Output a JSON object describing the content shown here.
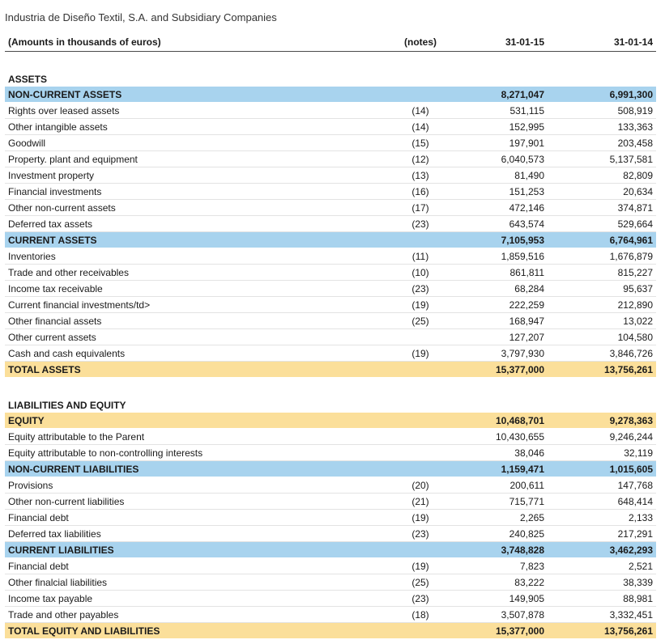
{
  "company": "Industria de Diseño Textil, S.A. and Subsidiary Companies",
  "header": {
    "label": "(Amounts in thousands of euros)",
    "notes": "(notes)",
    "col1": "31-01-15",
    "col2": "31-01-14"
  },
  "assets": {
    "title": "ASSETS",
    "non_current": {
      "label": "NON-CURRENT ASSETS",
      "v1": "8,271,047",
      "v2": "6,991,300",
      "rows": [
        {
          "label": "Rights over leased assets",
          "note": "(14)",
          "v1": "531,115",
          "v2": "508,919"
        },
        {
          "label": "Other intangible assets",
          "note": "(14)",
          "v1": "152,995",
          "v2": "133,363"
        },
        {
          "label": "Goodwill",
          "note": "(15)",
          "v1": "197,901",
          "v2": "203,458"
        },
        {
          "label": "Property. plant and equipment",
          "note": "(12)",
          "v1": "6,040,573",
          "v2": "5,137,581"
        },
        {
          "label": "Investment property",
          "note": "(13)",
          "v1": "81,490",
          "v2": "82,809"
        },
        {
          "label": "Financial investments",
          "note": "(16)",
          "v1": "151,253",
          "v2": "20,634"
        },
        {
          "label": "Other non-current assets",
          "note": "(17)",
          "v1": "472,146",
          "v2": "374,871"
        },
        {
          "label": "Deferred tax assets",
          "note": "(23)",
          "v1": "643,574",
          "v2": "529,664"
        }
      ]
    },
    "current": {
      "label": "CURRENT ASSETS",
      "v1": "7,105,953",
      "v2": "6,764,961",
      "rows": [
        {
          "label": "Inventories",
          "note": "(11)",
          "v1": "1,859,516",
          "v2": "1,676,879"
        },
        {
          "label": "Trade and other receivables",
          "note": "(10)",
          "v1": "861,811",
          "v2": "815,227"
        },
        {
          "label": "Income tax receivable",
          "note": "(23)",
          "v1": "68,284",
          "v2": "95,637"
        },
        {
          "label": "Current financial investments/td>",
          "note": "(19)",
          "v1": "222,259",
          "v2": "212,890"
        },
        {
          "label": "Other financial assets",
          "note": "(25)",
          "v1": "168,947",
          "v2": "13,022"
        },
        {
          "label": "Other current assets",
          "note": "",
          "v1": "127,207",
          "v2": "104,580"
        },
        {
          "label": "Cash and cash equivalents",
          "note": "(19)",
          "v1": "3,797,930",
          "v2": "3,846,726"
        }
      ]
    },
    "total": {
      "label": "TOTAL ASSETS",
      "v1": "15,377,000",
      "v2": "13,756,261"
    }
  },
  "liabilities": {
    "title": "LIABILITIES AND EQUITY",
    "equity": {
      "label": "EQUITY",
      "v1": "10,468,701",
      "v2": "9,278,363",
      "rows": [
        {
          "label": "Equity attributable to the Parent",
          "note": "",
          "v1": "10,430,655",
          "v2": "9,246,244"
        },
        {
          "label": "Equity attributable to non-controlling interests",
          "note": "",
          "v1": "38,046",
          "v2": "32,119"
        }
      ]
    },
    "non_current": {
      "label": "NON-CURRENT LIABILITIES",
      "v1": "1,159,471",
      "v2": "1,015,605",
      "rows": [
        {
          "label": "Provisions",
          "note": "(20)",
          "v1": "200,611",
          "v2": "147,768"
        },
        {
          "label": "Other non-current liabilities",
          "note": "(21)",
          "v1": "715,771",
          "v2": "648,414"
        },
        {
          "label": "Financial debt",
          "note": "(19)",
          "v1": "2,265",
          "v2": "2,133"
        },
        {
          "label": "Deferred tax liabilities",
          "note": "(23)",
          "v1": "240,825",
          "v2": "217,291"
        }
      ]
    },
    "current": {
      "label": "CURRENT LIABILITIES",
      "v1": "3,748,828",
      "v2": "3,462,293",
      "rows": [
        {
          "label": "Financial debt",
          "note": "(19)",
          "v1": "7,823",
          "v2": "2,521"
        },
        {
          "label": "Other finalcial liabilities",
          "note": "(25)",
          "v1": "83,222",
          "v2": "38,339"
        },
        {
          "label": "Income tax payable",
          "note": "(23)",
          "v1": "149,905",
          "v2": "88,981"
        },
        {
          "label": "Trade and other payables",
          "note": "(18)",
          "v1": "3,507,878",
          "v2": "3,332,451"
        }
      ]
    },
    "total": {
      "label": "TOTAL EQUITY AND LIABILITIES",
      "v1": "15,377,000",
      "v2": "13,756,261"
    }
  },
  "colors": {
    "section_blue": "#a8d3ee",
    "total_yellow": "#fbdf9a"
  }
}
